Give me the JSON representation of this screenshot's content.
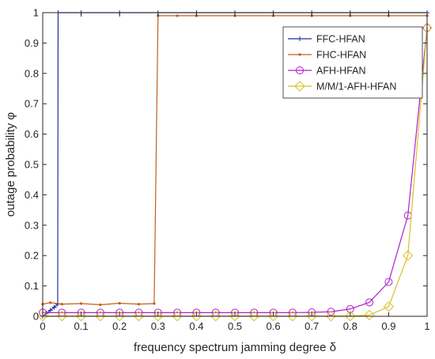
{
  "chart_data": {
    "type": "line",
    "xlabel": "frequency spectrum jamming degree δ",
    "ylabel": "outage probability φ",
    "xlim": [
      0,
      1
    ],
    "ylim": [
      0,
      1
    ],
    "xticks": [
      "0",
      "0.1",
      "0.2",
      "0.3",
      "0.4",
      "0.5",
      "0.6",
      "0.7",
      "0.8",
      "0.9",
      "1"
    ],
    "yticks": [
      "0",
      "0.1",
      "0.2",
      "0.3",
      "0.4",
      "0.5",
      "0.6",
      "0.7",
      "0.8",
      "0.9",
      "1"
    ],
    "grid": false,
    "legend_position": "top-right",
    "series": [
      {
        "name": "FFC-HFAN",
        "color": "#1f2f9a",
        "marker": "plus",
        "x": [
          0,
          0.01,
          0.02,
          0.03,
          0.039,
          0.04,
          0.1,
          0.2,
          0.3,
          0.4,
          0.5,
          0.6,
          0.7,
          0.8,
          0.9,
          1
        ],
        "y": [
          0.0,
          0.01,
          0.02,
          0.03,
          0.04,
          1.0,
          1.0,
          1.0,
          1.0,
          1.0,
          1.0,
          1.0,
          1.0,
          1.0,
          1.0,
          1.0
        ]
      },
      {
        "name": "FHC-HFAN",
        "color": "#c0601a",
        "marker": "dot",
        "x": [
          0,
          0.02,
          0.05,
          0.1,
          0.15,
          0.2,
          0.25,
          0.29,
          0.3,
          0.35,
          0.4,
          0.5,
          0.6,
          0.7,
          0.8,
          0.9,
          1
        ],
        "y": [
          0.04,
          0.045,
          0.04,
          0.042,
          0.038,
          0.043,
          0.04,
          0.042,
          0.99,
          0.99,
          0.99,
          0.99,
          0.99,
          0.99,
          0.99,
          0.99,
          0.99
        ]
      },
      {
        "name": "AFH-HFAN",
        "color": "#b01fd0",
        "marker": "circle",
        "x": [
          0,
          0.05,
          0.1,
          0.15,
          0.2,
          0.25,
          0.3,
          0.35,
          0.4,
          0.45,
          0.5,
          0.55,
          0.6,
          0.65,
          0.7,
          0.75,
          0.8,
          0.85,
          0.9,
          0.95,
          1
        ],
        "y": [
          0.012,
          0.012,
          0.012,
          0.012,
          0.012,
          0.012,
          0.012,
          0.012,
          0.012,
          0.012,
          0.012,
          0.012,
          0.012,
          0.012,
          0.013,
          0.015,
          0.024,
          0.046,
          0.113,
          0.332,
          0.95
        ]
      },
      {
        "name": "M/M/1-AFH-HFAN",
        "color": "#dcc02a",
        "marker": "diamond",
        "x": [
          0,
          0.05,
          0.1,
          0.15,
          0.2,
          0.25,
          0.3,
          0.35,
          0.4,
          0.45,
          0.5,
          0.55,
          0.6,
          0.65,
          0.7,
          0.75,
          0.8,
          0.85,
          0.9,
          0.95,
          1
        ],
        "y": [
          0.001,
          0.001,
          0.001,
          0.001,
          0.001,
          0.001,
          0.001,
          0.001,
          0.001,
          0.001,
          0.001,
          0.001,
          0.001,
          0.001,
          0.001,
          0.001,
          0.001,
          0.004,
          0.032,
          0.2,
          0.95
        ]
      }
    ]
  }
}
